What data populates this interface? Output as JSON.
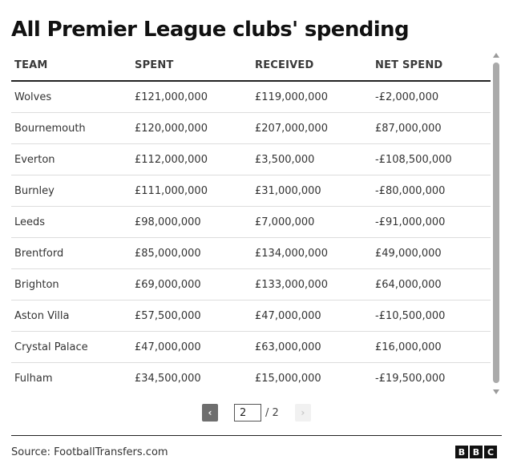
{
  "title": "All Premier League clubs' spending",
  "table": {
    "headers": [
      "TEAM",
      "SPENT",
      "RECEIVED",
      "NET SPEND"
    ],
    "rows": [
      [
        "Wolves",
        "£121,000,000",
        "£119,000,000",
        "-£2,000,000"
      ],
      [
        "Bournemouth",
        "£120,000,000",
        "£207,000,000",
        "£87,000,000"
      ],
      [
        "Everton",
        "£112,000,000",
        "£3,500,000",
        "-£108,500,000"
      ],
      [
        "Burnley",
        "£111,000,000",
        "£31,000,000",
        "-£80,000,000"
      ],
      [
        "Leeds",
        "£98,000,000",
        "£7,000,000",
        "-£91,000,000"
      ],
      [
        "Brentford",
        "£85,000,000",
        "£134,000,000",
        "£49,000,000"
      ],
      [
        "Brighton",
        "£69,000,000",
        "£133,000,000",
        "£64,000,000"
      ],
      [
        "Aston Villa",
        "£57,500,000",
        "£47,000,000",
        "-£10,500,000"
      ],
      [
        "Crystal Palace",
        "£47,000,000",
        "£63,000,000",
        "£16,000,000"
      ],
      [
        "Fulham",
        "£34,500,000",
        "£15,000,000",
        "-£19,500,000"
      ]
    ]
  },
  "pagination": {
    "prev_label": "‹",
    "current_page": "2",
    "total_label": "/ 2",
    "next_label": "›"
  },
  "footer": {
    "source": "Source: FootballTransfers.com",
    "logo_letters": [
      "B",
      "B",
      "C"
    ]
  },
  "colors": {
    "text": "#222222",
    "header_rule": "#222222",
    "row_divider": "#dddddd",
    "prev_button": "#6e6e6e",
    "next_button_disabled": "#f1f1f1",
    "scroll_thumb": "#aaaaaa"
  },
  "icons": {
    "scroll_up": "triangle-up-icon",
    "scroll_down": "triangle-down-icon",
    "prev": "chevron-left-icon",
    "next": "chevron-right-icon"
  }
}
